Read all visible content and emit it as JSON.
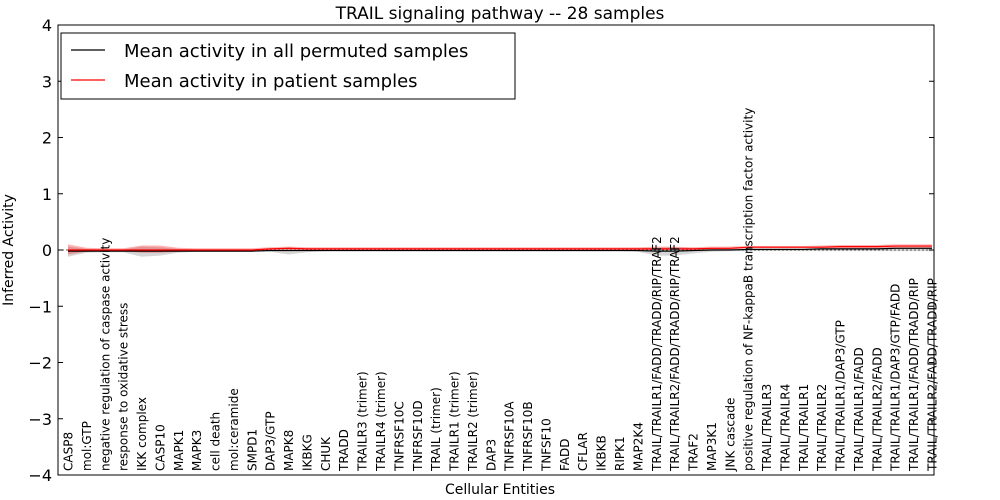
{
  "chart_data": {
    "type": "line",
    "title": "TRAIL signaling pathway -- 28 samples",
    "xlabel": "Cellular Entities",
    "ylabel": "Inferred Activity",
    "ylim": [
      -4,
      4
    ],
    "yticks": [
      -4,
      -3,
      -2,
      -1,
      0,
      1,
      2,
      3,
      4
    ],
    "ytick_labels": [
      "−4",
      "−3",
      "−2",
      "−1",
      "0",
      "1",
      "2",
      "3",
      "4"
    ],
    "legend_position": "upper-left",
    "categories": [
      "CASP8",
      "mol:GTP",
      "negative regulation of caspase activity",
      "response to oxidative stress",
      "IKK complex",
      "CASP10",
      "MAPK1",
      "MAPK3",
      "cell death",
      "mol:ceramide",
      "SMPD1",
      "DAP3/GTP",
      "MAPK8",
      "IKBKG",
      "CHUK",
      "TRADD",
      "TRAILR3 (trimer)",
      "TRAILR4 (trimer)",
      "TNFRSF10C",
      "TNFRSF10D",
      "TRAIL (trimer)",
      "TRAILR1 (trimer)",
      "TRAILR2 (trimer)",
      "DAP3",
      "TNFRSF10A",
      "TNFRSF10B",
      "TNFSF10",
      "FADD",
      "CFLAR",
      "IKBKB",
      "RIPK1",
      "MAP2K4",
      "TRAIL/TRAILR1/FADD/TRADD/RIP/TRAF2",
      "TRAIL/TRAILR2/FADD/TRADD/RIP/TRAF2",
      "TRAF2",
      "MAP3K1",
      "JNK cascade",
      "positive regulation of NF-kappaB transcription factor activity",
      "TRAIL/TRAILR3",
      "TRAIL/TRAILR4",
      "TRAIL/TRAILR1",
      "TRAIL/TRAILR2",
      "TRAIL/TRAILR1/DAP3/GTP",
      "TRAIL/TRAILR1/FADD",
      "TRAIL/TRAILR2/FADD",
      "TRAIL/TRAILR1/DAP3/GTP/FADD",
      "TRAIL/TRAILR1/FADD/TRADD/RIP",
      "TRAIL/TRAILR2/FADD/TRADD/RIP"
    ],
    "series": [
      {
        "name": "Mean activity in all permuted samples",
        "color": "#000000",
        "values": [
          -0.02,
          -0.02,
          -0.02,
          -0.02,
          -0.02,
          -0.02,
          -0.02,
          -0.02,
          -0.02,
          -0.02,
          -0.02,
          -0.01,
          -0.01,
          -0.01,
          -0.01,
          -0.01,
          -0.01,
          -0.01,
          -0.01,
          -0.01,
          -0.01,
          -0.01,
          -0.01,
          -0.01,
          -0.01,
          -0.01,
          -0.01,
          -0.01,
          -0.01,
          -0.01,
          -0.01,
          -0.01,
          -0.02,
          -0.02,
          -0.01,
          0.0,
          0.0,
          0.01,
          0.01,
          0.01,
          0.01,
          0.02,
          0.02,
          0.02,
          0.02,
          0.03,
          0.03,
          0.03
        ],
        "lower": [
          -0.12,
          -0.05,
          -0.04,
          -0.04,
          -0.12,
          -0.1,
          -0.05,
          -0.03,
          -0.03,
          -0.03,
          -0.03,
          -0.03,
          -0.08,
          -0.04,
          -0.02,
          -0.02,
          -0.02,
          -0.02,
          -0.02,
          -0.02,
          -0.02,
          -0.02,
          -0.02,
          -0.02,
          -0.02,
          -0.02,
          -0.02,
          -0.02,
          -0.02,
          -0.02,
          -0.02,
          -0.03,
          -0.1,
          -0.1,
          -0.06,
          -0.03,
          -0.02,
          -0.02,
          -0.02,
          -0.02,
          -0.02,
          -0.02,
          -0.02,
          -0.02,
          -0.02,
          -0.02,
          -0.02,
          -0.02
        ],
        "upper": [
          0.06,
          0.02,
          0.01,
          0.01,
          0.06,
          0.05,
          0.02,
          0.01,
          0.01,
          0.01,
          0.01,
          0.02,
          0.05,
          0.02,
          0.01,
          0.01,
          0.01,
          0.01,
          0.01,
          0.01,
          0.01,
          0.01,
          0.01,
          0.01,
          0.01,
          0.01,
          0.01,
          0.01,
          0.01,
          0.01,
          0.01,
          0.02,
          0.04,
          0.05,
          0.03,
          0.03,
          0.02,
          0.03,
          0.03,
          0.03,
          0.03,
          0.04,
          0.04,
          0.04,
          0.04,
          0.05,
          0.05,
          0.05
        ]
      },
      {
        "name": "Mean activity in patient samples",
        "color": "#ff0000",
        "values": [
          0.0,
          0.0,
          0.0,
          0.0,
          0.0,
          0.0,
          0.0,
          0.0,
          0.0,
          0.0,
          0.0,
          0.02,
          0.03,
          0.02,
          0.02,
          0.02,
          0.02,
          0.02,
          0.02,
          0.02,
          0.02,
          0.02,
          0.02,
          0.02,
          0.02,
          0.02,
          0.02,
          0.02,
          0.02,
          0.02,
          0.02,
          0.02,
          0.02,
          0.02,
          0.02,
          0.03,
          0.03,
          0.05,
          0.05,
          0.05,
          0.05,
          0.05,
          0.06,
          0.06,
          0.06,
          0.07,
          0.07,
          0.07
        ],
        "lower": [
          -0.08,
          -0.03,
          -0.02,
          -0.02,
          -0.05,
          -0.05,
          -0.03,
          -0.02,
          -0.02,
          -0.02,
          -0.02,
          0.0,
          0.0,
          0.0,
          0.0,
          0.0,
          0.0,
          0.0,
          0.0,
          0.0,
          0.0,
          0.0,
          0.0,
          0.0,
          0.0,
          0.0,
          0.0,
          0.0,
          0.0,
          0.0,
          0.0,
          0.0,
          0.0,
          0.0,
          0.0,
          0.01,
          0.01,
          0.03,
          0.03,
          0.03,
          0.03,
          0.03,
          0.03,
          0.03,
          0.03,
          0.03,
          0.03,
          0.03
        ],
        "upper": [
          0.1,
          0.04,
          0.03,
          0.03,
          0.08,
          0.08,
          0.04,
          0.03,
          0.03,
          0.03,
          0.03,
          0.05,
          0.06,
          0.05,
          0.05,
          0.05,
          0.05,
          0.05,
          0.05,
          0.05,
          0.05,
          0.05,
          0.05,
          0.05,
          0.05,
          0.05,
          0.05,
          0.05,
          0.05,
          0.05,
          0.05,
          0.05,
          0.06,
          0.06,
          0.05,
          0.06,
          0.06,
          0.07,
          0.07,
          0.07,
          0.07,
          0.08,
          0.09,
          0.09,
          0.09,
          0.1,
          0.1,
          0.1
        ]
      }
    ]
  }
}
